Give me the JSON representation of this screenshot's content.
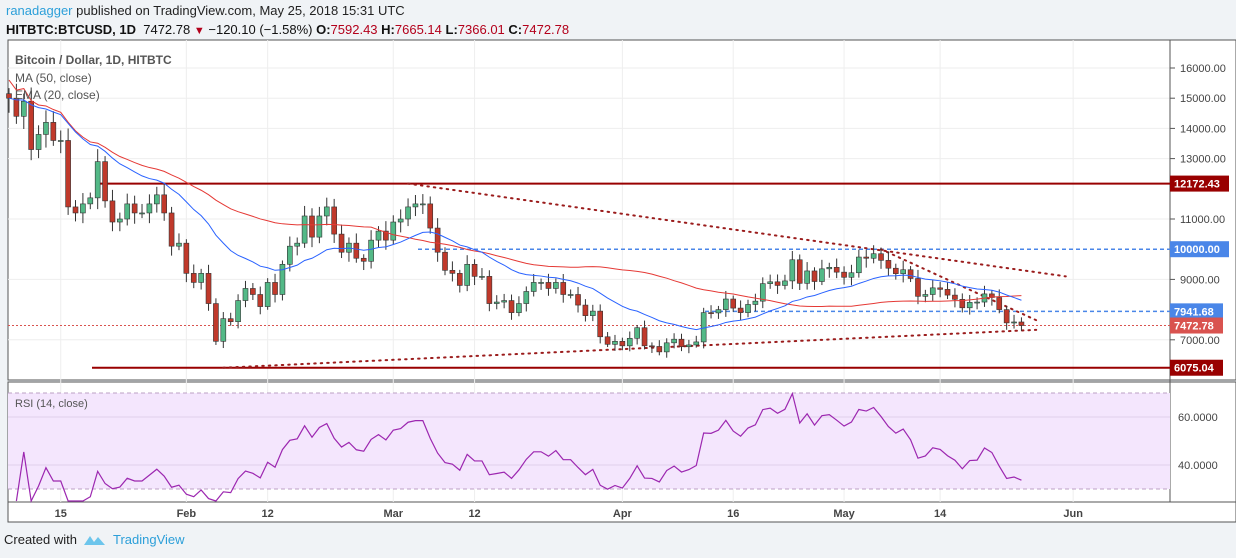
{
  "header": {
    "author": "ranadagger",
    "published": "published on TradingView.com, May 25, 2018 15:31 UTC",
    "symbol": "HITBTC:BTCUSD, 1D",
    "last": "7472.78",
    "change": "−120.10 (−1.58%)",
    "o_label": "O:",
    "o": "7592.43",
    "h_label": "H:",
    "h": "7665.14",
    "l_label": "L:",
    "l": "7366.01",
    "c_label": "C:",
    "c": "7472.78"
  },
  "legend": {
    "title": "Bitcoin / Dollar, 1D, HITBTC",
    "ma": "MA (50, close)",
    "ema": "EMA (20, close)",
    "rsi": "RSI (14, close)"
  },
  "footer": {
    "created": "Created with",
    "brand": "TradingView"
  },
  "colors": {
    "up": "#53b987",
    "down": "#c0392b",
    "ma": "#e53935",
    "ema": "#2962ff",
    "rsi": "#9c27b0",
    "rsi_fill": "#f4e6fd",
    "level": "#990000",
    "dash": "#4a86e8",
    "last": "#d9534f"
  },
  "chart_data": [
    {
      "type": "candlestick",
      "title": "Bitcoin / Dollar, 1D, HITBTC",
      "start_date": "2018-01-08",
      "close": [
        15000,
        14400,
        14900,
        13300,
        13800,
        14200,
        13600,
        13600,
        11400,
        11200,
        11500,
        11700,
        12900,
        11600,
        10900,
        11000,
        11500,
        11200,
        11200,
        11500,
        11800,
        11200,
        10100,
        10200,
        9200,
        8900,
        9200,
        8200,
        6950,
        7700,
        7600,
        8300,
        8700,
        8500,
        8100,
        8900,
        8500,
        9500,
        10100,
        10200,
        11100,
        10400,
        11100,
        11400,
        10500,
        9900,
        10200,
        9700,
        9600,
        10300,
        10600,
        10300,
        10900,
        11000,
        11400,
        11500,
        11500,
        10700,
        9900,
        9300,
        9200,
        8800,
        9500,
        9100,
        9100,
        8200,
        8250,
        8300,
        7900,
        8200,
        8600,
        8900,
        8900,
        8700,
        8900,
        8500,
        8500,
        8150,
        7800,
        7950,
        7100,
        6850,
        6950,
        6800,
        7050,
        7400,
        6800,
        6780,
        6600,
        6900,
        7020,
        6770,
        6830,
        6930,
        7900,
        7890,
        8000,
        8350,
        8050,
        7900,
        8170,
        8280,
        8860,
        8920,
        8800,
        8950,
        9650,
        8870,
        9280,
        8930,
        9350,
        9400,
        9240,
        9070,
        9220,
        9740,
        9700,
        9850,
        9630,
        9370,
        9190,
        9320,
        9030,
        8440,
        8500,
        8720,
        8670,
        8480,
        8340,
        8060,
        8240,
        8250,
        8520,
        8400,
        8000,
        7560,
        7590,
        7472.78
      ],
      "indicators": [
        "MA (50, close)",
        "EMA (20, close)"
      ],
      "y_ticks": [
        "16000.00",
        "15000.00",
        "14000.00",
        "13000.00",
        "11000.00",
        "9000.00",
        "7000.00"
      ],
      "x_ticks": [
        "15",
        "Feb",
        "12",
        "Mar",
        "12",
        "Apr",
        "16",
        "May",
        "14",
        "Jun"
      ],
      "levels": [
        {
          "label": "12172.43",
          "value": 12172.43,
          "style": "solid"
        },
        {
          "label": "10000.00",
          "value": 10000,
          "style": "dashed"
        },
        {
          "label": "7941.68",
          "value": 7941.68,
          "style": "dashed"
        },
        {
          "label": "7472.78",
          "value": 7472.78,
          "style": "last"
        },
        {
          "label": "6075.04",
          "value": 6075.04,
          "style": "solid"
        }
      ],
      "trendlines": [
        {
          "from": [
            "2018-03-03",
            12172
          ],
          "to": [
            "2018-05-31",
            9100
          ]
        },
        {
          "from": [
            "2018-05-06",
            10000
          ],
          "to": [
            "2018-05-27",
            7650
          ]
        },
        {
          "from": [
            "2018-02-06",
            6075
          ],
          "to": [
            "2018-05-27",
            7330
          ]
        }
      ],
      "ylim": [
        5600,
        16800
      ]
    },
    {
      "type": "line",
      "title": "RSI (14, close)",
      "y_ticks": [
        "60.0000",
        "40.0000"
      ],
      "bands": [
        30,
        70
      ],
      "ylim": [
        25,
        71
      ]
    }
  ]
}
